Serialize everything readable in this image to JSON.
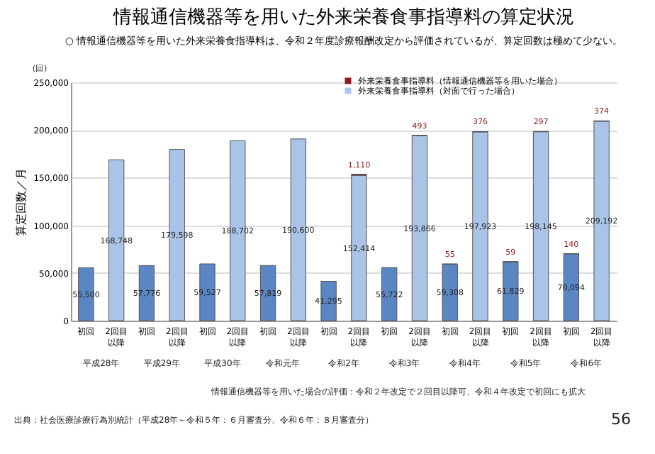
{
  "chart_data": {
    "type": "bar",
    "stacked": true,
    "title": "情報通信機器等を用いた外来栄養食事指導料の算定状況",
    "subtitle": "○ 情報通信機器等を用いた外来栄養食指導料は、令和２年度診療報酬改定から評価されているが、算定回数は極めて少ない。",
    "ylabel": "算定回数／月",
    "categories": [
      "初回",
      "2回目以降",
      "初回",
      "2回目以降",
      "初回",
      "2回目以降",
      "初回",
      "2回目以降",
      "初回",
      "2回目以降",
      "初回",
      "2回目以降",
      "初回",
      "2回目以降",
      "初回",
      "2回目以降",
      "初回",
      "2回目以降"
    ],
    "series": [
      {
        "name": "外来栄養食事指導料（対面で行った場合）",
        "color": "#a9c4e6",
        "colors": [
          "#5b86c4",
          "#a9c4e6",
          "#5b86c4",
          "#a9c4e6",
          "#5b86c4",
          "#a9c4e6",
          "#5b86c4",
          "#a9c4e6",
          "#5b86c4",
          "#a9c4e6",
          "#5b86c4",
          "#a9c4e6",
          "#5b86c4",
          "#a9c4e6",
          "#5b86c4",
          "#a9c4e6",
          "#5b86c4",
          "#a9c4e6"
        ],
        "values": [
          55500,
          168748,
          57776,
          179598,
          59527,
          188702,
          57819,
          190600,
          41295,
          152414,
          55722,
          193866,
          59308,
          197923,
          61829,
          198145,
          70094,
          209192
        ],
        "value_labels": [
          "55,500",
          "168,748",
          "57,776",
          "179,598",
          "59,527",
          "188,702",
          "57,819",
          "190,600",
          "41,295",
          "152,414",
          "55,722",
          "193,866",
          "59,308",
          "197,923",
          "61,829",
          "198,145",
          "70,094",
          "209,192"
        ]
      },
      {
        "name": "外来栄養食事指導料（情報通信機器等を用いた場合）",
        "color": "#8b1a1a",
        "values": [
          null,
          null,
          null,
          null,
          null,
          null,
          null,
          null,
          null,
          1110,
          null,
          493,
          55,
          376,
          59,
          297,
          140,
          374
        ],
        "value_labels": [
          null,
          null,
          null,
          null,
          null,
          null,
          null,
          null,
          null,
          "1,110",
          null,
          "493",
          "55",
          "376",
          "59",
          "297",
          "140",
          "374"
        ]
      }
    ],
    "ylim": [
      0,
      250000
    ],
    "yticks": [
      0,
      {
        "value": 50000,
        "label": "50,000"
      },
      {
        "value": 100000,
        "label": "100,000"
      },
      {
        "value": 150000,
        "label": "150,000"
      },
      {
        "value": 200000,
        "label": "200,000"
      },
      {
        "value": 250000,
        "label": "250,000"
      }
    ],
    "grid": "y",
    "legend": "top right",
    "annotations": [
      "(回)",
      "平成28年",
      "平成29年",
      "平成30年",
      "令和元年",
      "令和2年",
      "令和3年",
      "令和4年",
      "令和5年",
      "令和6年",
      "情報通信機器等を用いた場合の評価：令和２年改定で２回目以降可、令和４年改定で初回にも拡大",
      "出典：社会医療診療行為別統計（平成28年～令和５年：６月審査分、令和６年：８月審査分）",
      "56"
    ]
  }
}
